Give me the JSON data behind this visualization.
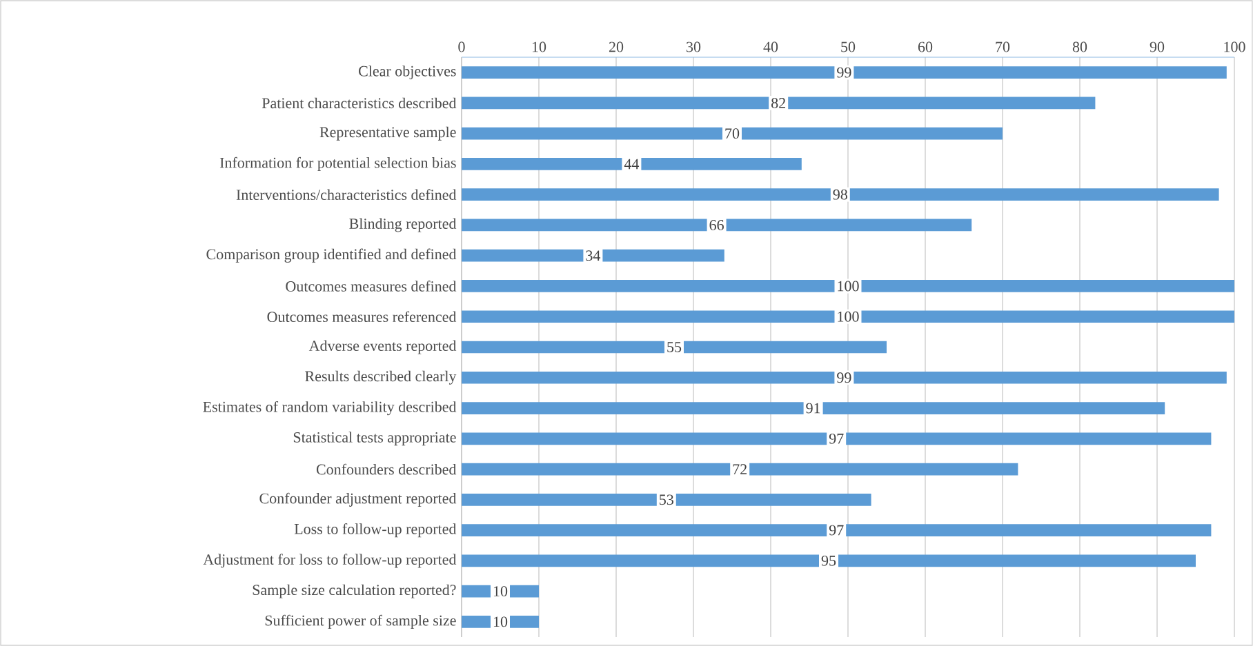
{
  "chart_data": {
    "type": "bar",
    "orientation": "horizontal",
    "categories": [
      "Clear objectives",
      "Patient characteristics described",
      "Representative sample",
      "Information for potential selection bias",
      "Interventions/characteristics defined",
      "Blinding reported",
      "Comparison group identified and defined",
      "Outcomes measures defined",
      "Outcomes measures referenced",
      "Adverse events reported",
      "Results described clearly",
      "Estimates of random variability described",
      "Statistical tests appropriate",
      "Confounders described",
      "Confounder adjustment reported",
      "Loss to follow-up reported",
      "Adjustment for loss to follow-up reported",
      "Sample size calculation reported?",
      "Sufficient power of sample size"
    ],
    "values": [
      99,
      82,
      70,
      44,
      98,
      66,
      34,
      100,
      100,
      55,
      99,
      91,
      97,
      72,
      53,
      97,
      95,
      10,
      10
    ],
    "color": "#5b9bd5",
    "xlim": [
      0,
      100
    ],
    "xticks": [
      0,
      10,
      20,
      30,
      40,
      50,
      60,
      70,
      80,
      90,
      100
    ],
    "grid": "x",
    "data_labels": true
  }
}
